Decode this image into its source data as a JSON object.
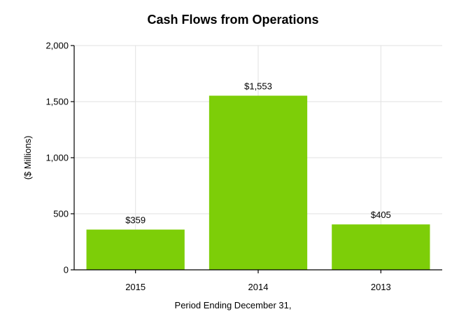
{
  "chart_data": {
    "type": "bar",
    "title": "Cash Flows from Operations",
    "xlabel": "Period Ending December 31,",
    "ylabel": "($ Millions)",
    "categories": [
      "2015",
      "2014",
      "2013"
    ],
    "values": [
      359,
      1553,
      405
    ],
    "data_labels": [
      "$359",
      "$1,553",
      "$405"
    ],
    "ylim": [
      0,
      2000
    ],
    "yticks": [
      0,
      500,
      1000,
      1500,
      2000
    ],
    "ytick_labels": [
      "0",
      "500",
      "1,000",
      "1,500",
      "2,000"
    ],
    "grid": true,
    "legend": "none",
    "bar_color": "#7dce08"
  }
}
